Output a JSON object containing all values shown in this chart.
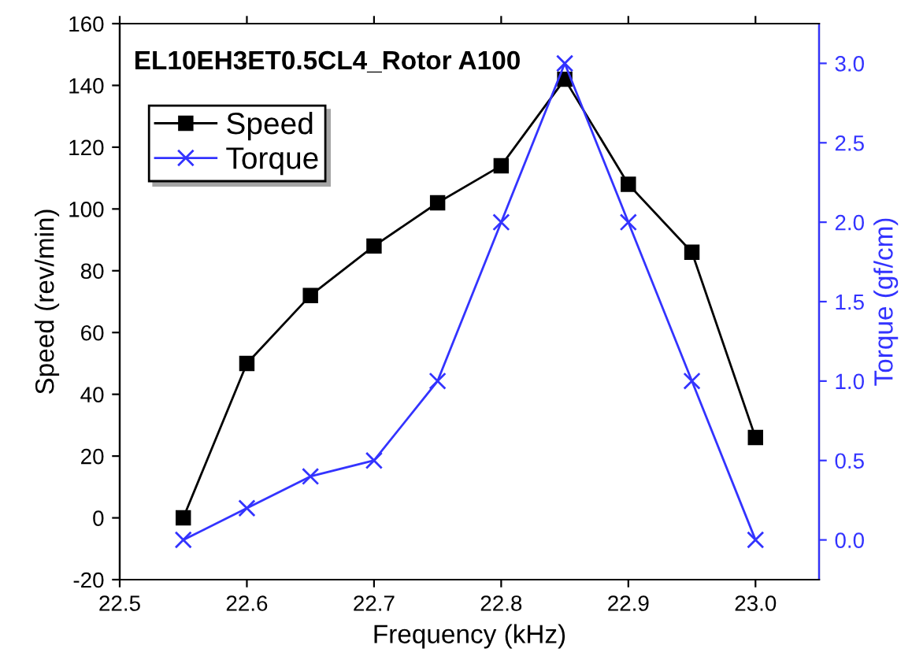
{
  "chart_data": {
    "type": "line",
    "title": "EL10EH3ET0.5CL4_Rotor A100",
    "xlabel": "Frequency (kHz)",
    "ylabel": "Speed (rev/min)",
    "y2label": "Torque (gf/cm)",
    "x": [
      22.55,
      22.6,
      22.65,
      22.7,
      22.75,
      22.8,
      22.85,
      22.9,
      22.95,
      23.0
    ],
    "series": [
      {
        "name": "Speed",
        "color": "#000000",
        "marker": "square",
        "values": [
          0,
          50,
          72,
          88,
          102,
          114,
          142,
          108,
          86,
          26
        ]
      },
      {
        "name": "Torque",
        "color": "#3333ff",
        "marker": "cross",
        "axis": "y2",
        "values": [
          0.0,
          0.2,
          0.4,
          0.5,
          1.0,
          2.0,
          3.0,
          2.0,
          1.0,
          0.0
        ]
      }
    ],
    "xlim": [
      22.5,
      23.05
    ],
    "xticks": [
      {
        "value": 22.5,
        "label": "22.5"
      },
      {
        "value": 22.6,
        "label": "22.6"
      },
      {
        "value": 22.7,
        "label": "22.7"
      },
      {
        "value": 22.8,
        "label": "22.8"
      },
      {
        "value": 22.9,
        "label": "22.9"
      },
      {
        "value": 23.0,
        "label": "23.0"
      }
    ],
    "ylim": [
      -20,
      160
    ],
    "yticks": [
      -20,
      0,
      20,
      40,
      60,
      80,
      100,
      120,
      140,
      160
    ],
    "y2lim": [
      -0.25,
      3.25
    ],
    "y2ticks": [
      {
        "value": 0.0,
        "label": "0.0"
      },
      {
        "value": 0.5,
        "label": "0.5"
      },
      {
        "value": 1.0,
        "label": "1.0"
      },
      {
        "value": 1.5,
        "label": "1.5"
      },
      {
        "value": 2.0,
        "label": "2.0"
      },
      {
        "value": 2.5,
        "label": "2.5"
      },
      {
        "value": 3.0,
        "label": "3.0"
      }
    ],
    "legend": "top left",
    "grid": false,
    "line_style": "solid"
  }
}
